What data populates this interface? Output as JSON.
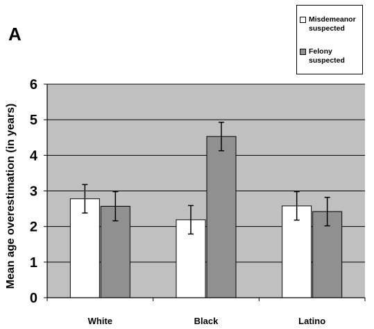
{
  "panel_label": "A",
  "colors": {
    "plot_background": "#c0c0c0",
    "gridline": "#000000",
    "misdemeanor": "#ffffff",
    "felony": "#909090"
  },
  "chart_data": {
    "type": "bar",
    "title": "",
    "xlabel": "",
    "ylabel": "Mean age overestimation (in years)",
    "ylim": [
      0,
      6
    ],
    "yticks": [
      "0",
      "1",
      "2",
      "3",
      "4",
      "5",
      "6"
    ],
    "grid": true,
    "legend_position": "top-right",
    "categories": [
      "White",
      "Black",
      "Latino"
    ],
    "series": [
      {
        "name": "Misdemeanor suspected",
        "values": [
          2.78,
          2.19,
          2.58
        ],
        "errors": [
          0.4,
          0.4,
          0.4
        ]
      },
      {
        "name": "Felony suspected",
        "values": [
          2.57,
          4.53,
          2.42
        ],
        "errors": [
          0.41,
          0.4,
          0.4
        ]
      }
    ]
  }
}
